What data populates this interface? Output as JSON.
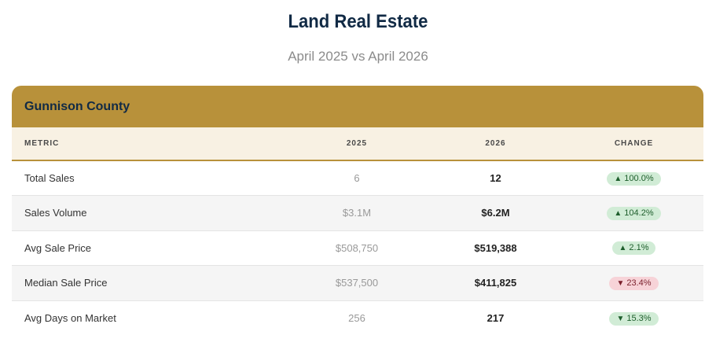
{
  "header": {
    "title": "Land Real Estate",
    "subtitle": "April 2025 vs April 2026"
  },
  "card": {
    "county": "Gunnison County",
    "columns": {
      "metric": "METRIC",
      "year1": "2025",
      "year2": "2026",
      "change": "CHANGE"
    },
    "rows": [
      {
        "metric": "Total Sales",
        "y2025": "6",
        "y2026": "12",
        "arrow": "▲",
        "change": "100.0%"
      },
      {
        "metric": "Sales Volume",
        "y2025": "$3.1M",
        "y2026": "$6.2M",
        "arrow": "▲",
        "change": "104.2%"
      },
      {
        "metric": "Avg Sale Price",
        "y2025": "$508,750",
        "y2026": "$519,388",
        "arrow": "▲",
        "change": "2.1%"
      },
      {
        "metric": "Median Sale Price",
        "y2025": "$537,500",
        "y2026": "$411,825",
        "arrow": "▼",
        "change": "23.4%"
      },
      {
        "metric": "Avg Days on Market",
        "y2025": "256",
        "y2026": "217",
        "arrow": "▼",
        "change": "15.3%"
      }
    ]
  },
  "colors": {
    "accent_gold": "#b8913a",
    "navy": "#112a45",
    "positive_bg": "#d1ecd6",
    "negative_bg": "#f7d3d8"
  }
}
